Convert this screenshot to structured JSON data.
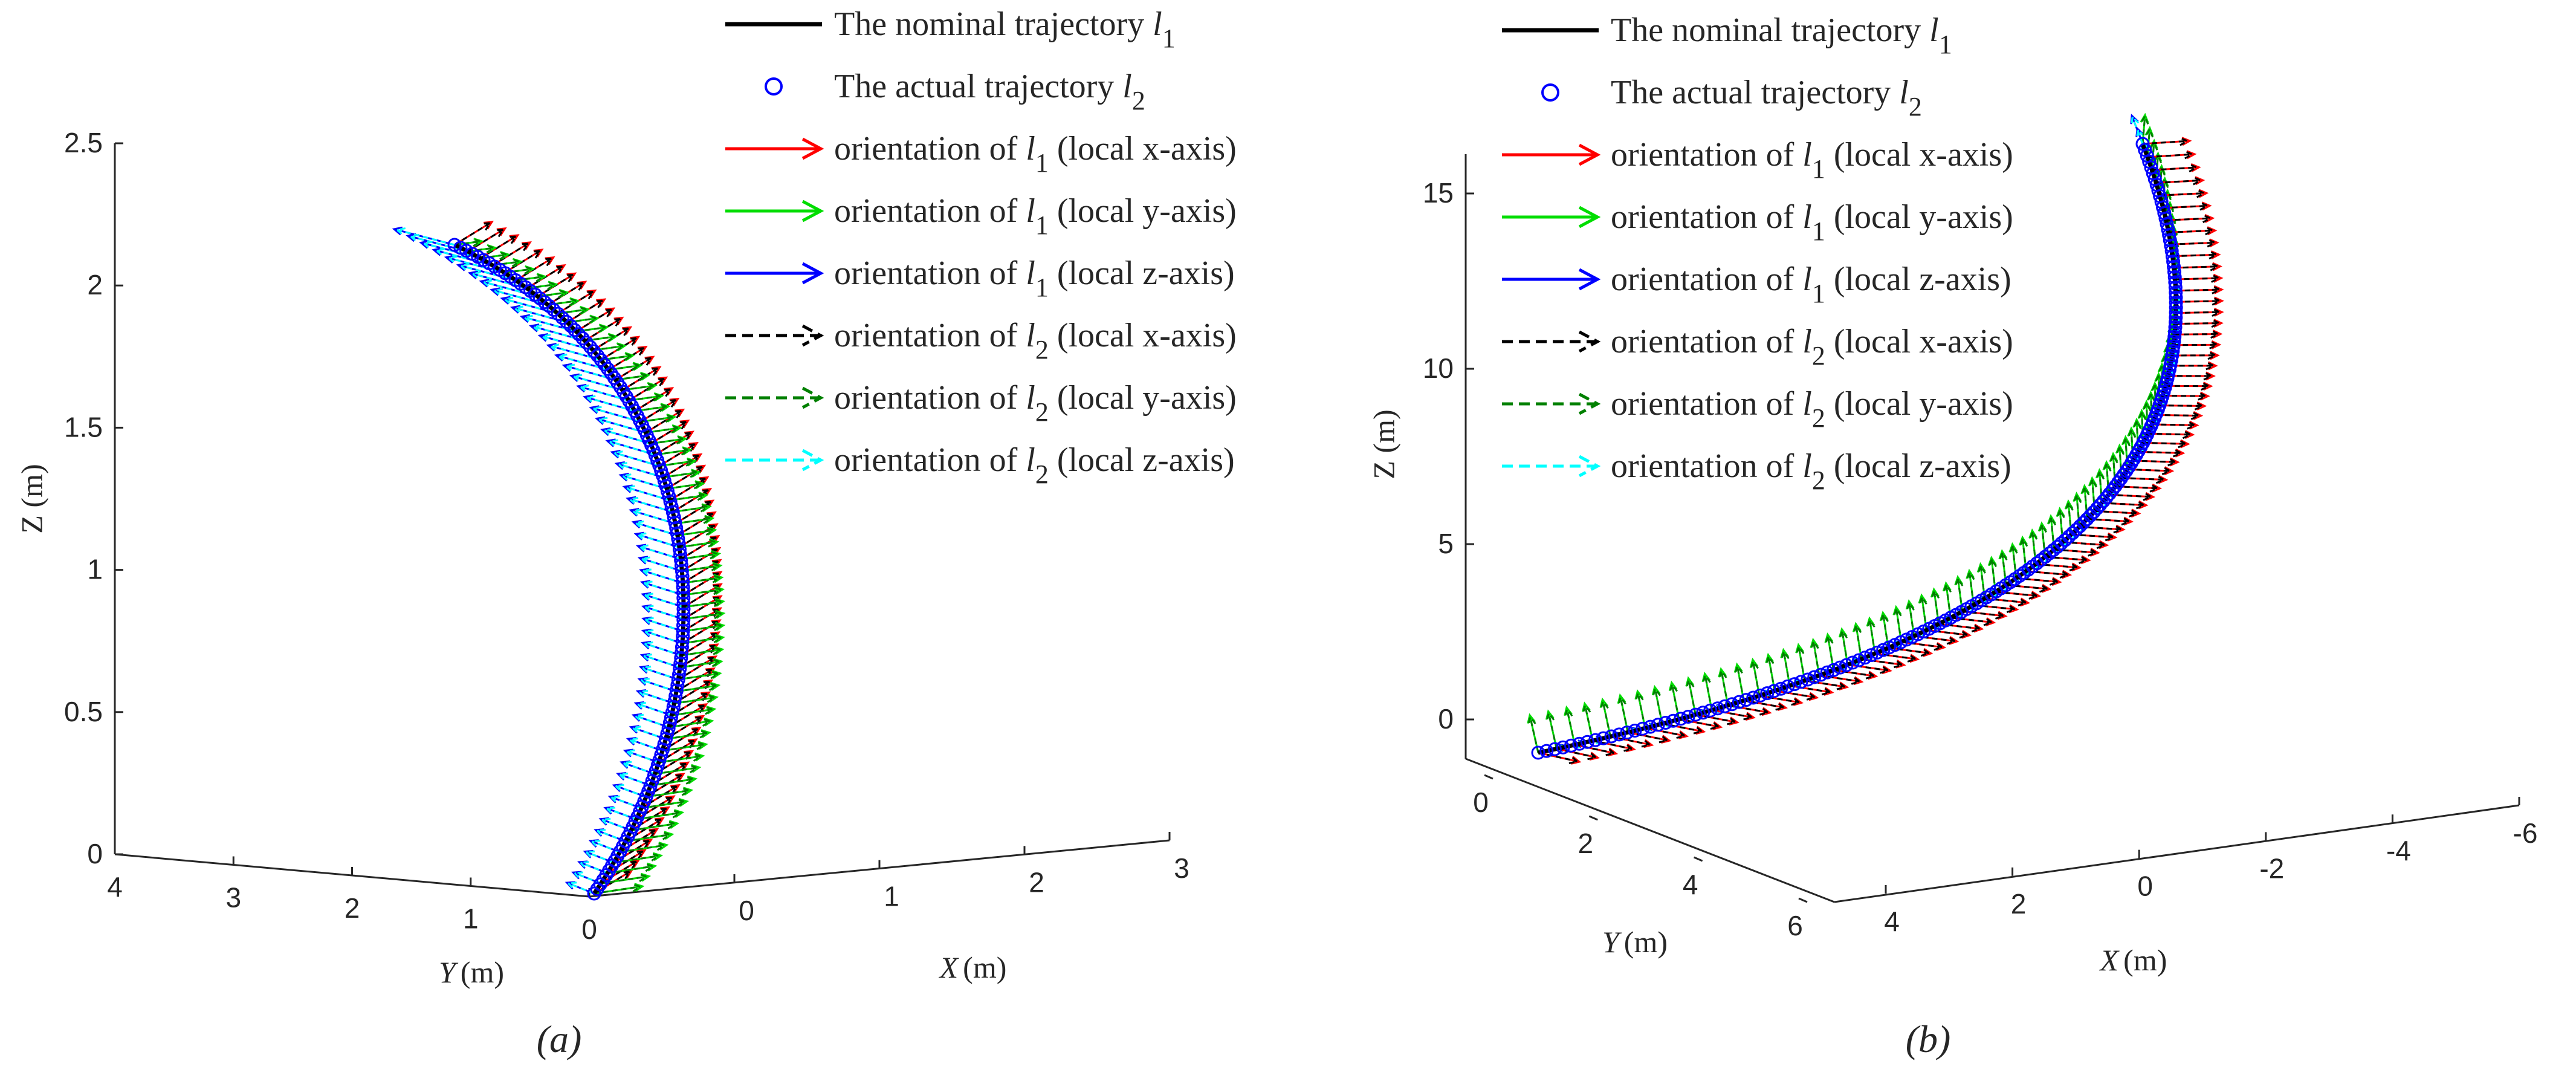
{
  "chart_data": [
    {
      "type": "3d-line-quiver",
      "panel_label": "(a)",
      "zlabel": "Z (m)",
      "ylabel": "Y (m)",
      "xlabel": "X (m)",
      "ylabel_parts": {
        "var": "Y",
        "unit": "(m)"
      },
      "xlabel_parts": {
        "var": "X",
        "unit": "(m)"
      },
      "z_ticks": [
        "0",
        "0.5",
        "1",
        "1.5",
        "2",
        "2.5"
      ],
      "y_ticks": [
        "0",
        "1",
        "2",
        "3",
        "4"
      ],
      "x_ticks": [
        "0",
        "1",
        "2",
        "3"
      ],
      "zlim": [
        0,
        2.5
      ],
      "ylim": [
        0,
        4
      ],
      "xlim": [
        0,
        3
      ],
      "series": [
        {
          "name": "The nominal trajectory l1",
          "color": "#000000",
          "style": "solid line"
        },
        {
          "name": "The actual trajectory l2",
          "color": "#0000ff",
          "style": "circle markers"
        },
        {
          "name": "orientation of l1 (local x-axis)",
          "color": "#ff0000",
          "style": "solid arrow"
        },
        {
          "name": "orientation of l1 (local y-axis)",
          "color": "#00dd00",
          "style": "solid arrow"
        },
        {
          "name": "orientation of l1 (local z-axis)",
          "color": "#0000ff",
          "style": "solid arrow"
        },
        {
          "name": "orientation of l2 (local x-axis)",
          "color": "#000000",
          "style": "dashed arrow"
        },
        {
          "name": "orientation of l2 (local y-axis)",
          "color": "#008000",
          "style": "dashed arrow"
        },
        {
          "name": "orientation of l2 (local z-axis)",
          "color": "#00ffff",
          "style": "dashed arrow"
        }
      ],
      "trajectory_z_range": [
        0,
        2.1
      ]
    },
    {
      "type": "3d-line-quiver",
      "panel_label": "(b)",
      "zlabel": "Z (m)",
      "ylabel": "Y (m)",
      "xlabel": "X (m)",
      "ylabel_parts": {
        "var": "Y",
        "unit": "(m)"
      },
      "xlabel_parts": {
        "var": "X",
        "unit": "(m)"
      },
      "z_ticks": [
        "0",
        "5",
        "10",
        "15"
      ],
      "y_ticks": [
        "0",
        "2",
        "4",
        "6"
      ],
      "x_ticks": [
        "4",
        "2",
        "0",
        "-2",
        "-4",
        "-6"
      ],
      "zlim": [
        0,
        16
      ],
      "ylim": [
        0,
        6
      ],
      "xlim": [
        -6,
        5
      ],
      "series": [
        {
          "name": "The nominal trajectory l1",
          "color": "#000000",
          "style": "solid line"
        },
        {
          "name": "The actual trajectory l2",
          "color": "#0000ff",
          "style": "circle markers"
        },
        {
          "name": "orientation of l1 (local x-axis)",
          "color": "#ff0000",
          "style": "solid arrow"
        },
        {
          "name": "orientation of l1 (local y-axis)",
          "color": "#00dd00",
          "style": "solid arrow"
        },
        {
          "name": "orientation of l1 (local z-axis)",
          "color": "#0000ff",
          "style": "solid arrow"
        },
        {
          "name": "orientation of l2 (local x-axis)",
          "color": "#000000",
          "style": "dashed arrow"
        },
        {
          "name": "orientation of l2 (local y-axis)",
          "color": "#008000",
          "style": "dashed arrow"
        },
        {
          "name": "orientation of l2 (local z-axis)",
          "color": "#00ffff",
          "style": "dashed arrow"
        }
      ],
      "trajectory_z_range": [
        0,
        16.5
      ]
    }
  ],
  "legend": [
    {
      "prefix": "The nominal trajectory ",
      "var": "l",
      "sub": "1",
      "suffix": "",
      "color": "#000000",
      "kind": "line"
    },
    {
      "prefix": "The actual trajectory ",
      "var": "l",
      "sub": "2",
      "suffix": "",
      "color": "#0000ff",
      "kind": "circle"
    },
    {
      "prefix": "orientation of ",
      "var": "l",
      "sub": "1",
      "suffix": " (local x-axis)",
      "color": "#ff0000",
      "kind": "arrow"
    },
    {
      "prefix": "orientation of ",
      "var": "l",
      "sub": "1",
      "suffix": " (local y-axis)",
      "color": "#00dd00",
      "kind": "arrow"
    },
    {
      "prefix": "orientation of ",
      "var": "l",
      "sub": "1",
      "suffix": " (local z-axis)",
      "color": "#0000ff",
      "kind": "arrow"
    },
    {
      "prefix": "orientation of ",
      "var": "l",
      "sub": "2",
      "suffix": " (local x-axis)",
      "color": "#000000",
      "kind": "dashed"
    },
    {
      "prefix": "orientation of ",
      "var": "l",
      "sub": "2",
      "suffix": " (local y-axis)",
      "color": "#008000",
      "kind": "dashed"
    },
    {
      "prefix": "orientation of ",
      "var": "l",
      "sub": "2",
      "suffix": " (local z-axis)",
      "color": "#00ffff",
      "kind": "dashed"
    }
  ]
}
